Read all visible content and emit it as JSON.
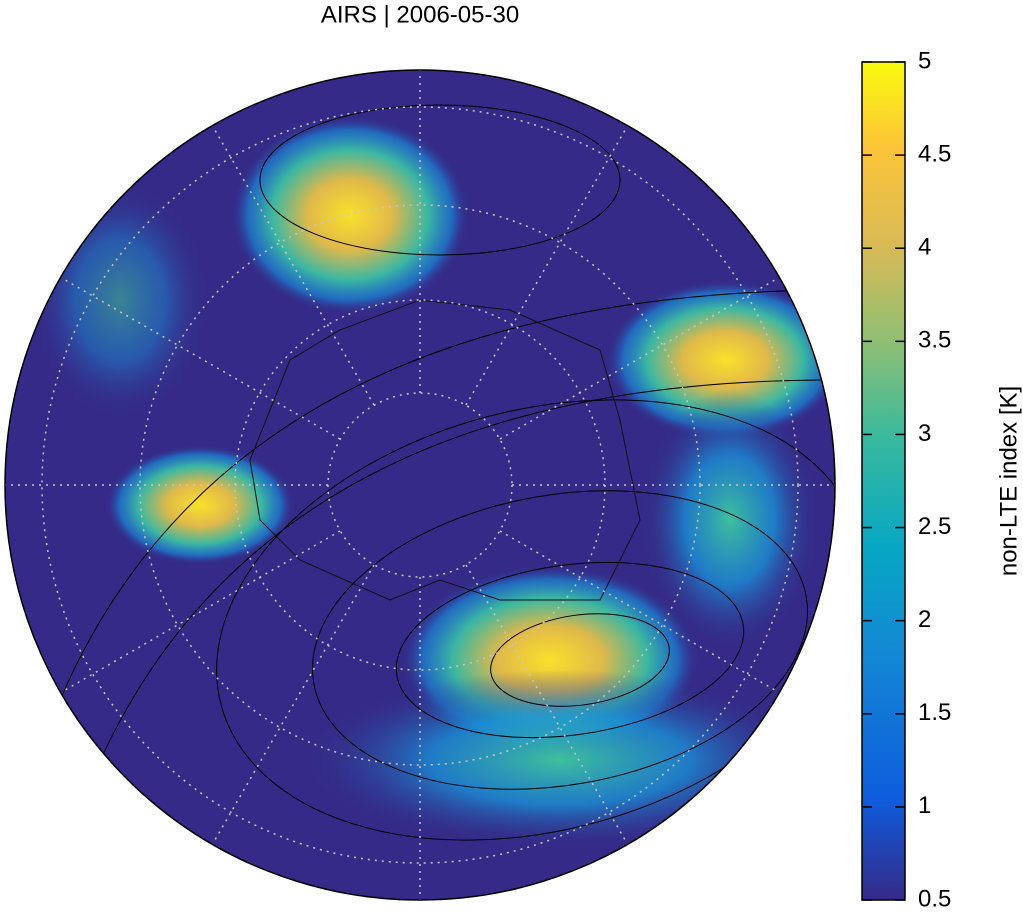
{
  "title": "AIRS | 2006-05-30",
  "colorbar": {
    "label": "non-LTE index [K]",
    "lim": [
      0.5,
      5
    ],
    "ticks": [
      0.5,
      1,
      1.5,
      2,
      2.5,
      3,
      3.5,
      4,
      4.5,
      5
    ]
  }
}
